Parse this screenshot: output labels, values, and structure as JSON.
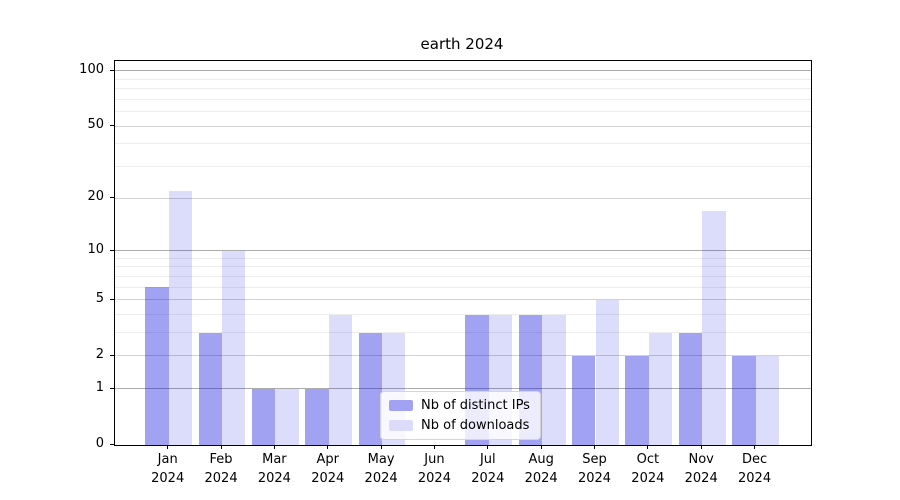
{
  "title": "earth 2024",
  "chart_data": {
    "type": "bar",
    "title": "earth 2024",
    "categories": [
      "Jan",
      "Feb",
      "Mar",
      "Apr",
      "May",
      "Jun",
      "Jul",
      "Aug",
      "Sep",
      "Oct",
      "Nov",
      "Dec"
    ],
    "year": "2024",
    "series": [
      {
        "name": "Nb of distinct IPs",
        "color": "#a2a2f3",
        "fill": "rgba(16,16,224,0.39)",
        "values": [
          6,
          3,
          1,
          1,
          3,
          0,
          4,
          4,
          2,
          2,
          3,
          2
        ]
      },
      {
        "name": "Nb of downloads",
        "color": "#dcdcfa",
        "fill": "rgba(16,16,224,0.145)",
        "values": [
          22,
          10,
          1,
          4,
          3,
          0,
          4,
          4,
          5,
          3,
          17,
          2
        ]
      }
    ],
    "yscale": "log1p",
    "ylim": [
      0,
      113
    ],
    "yticks": [
      0,
      1,
      2,
      5,
      10,
      20,
      50,
      100
    ],
    "grid": {
      "major": [
        1,
        10,
        100
      ],
      "minor_labeled": [
        2,
        5,
        20,
        50
      ],
      "minor": [
        3,
        4,
        6,
        7,
        8,
        9,
        30,
        40,
        60,
        70,
        80,
        90
      ]
    },
    "legend_position": "lower center",
    "xlabel": "",
    "ylabel": ""
  }
}
